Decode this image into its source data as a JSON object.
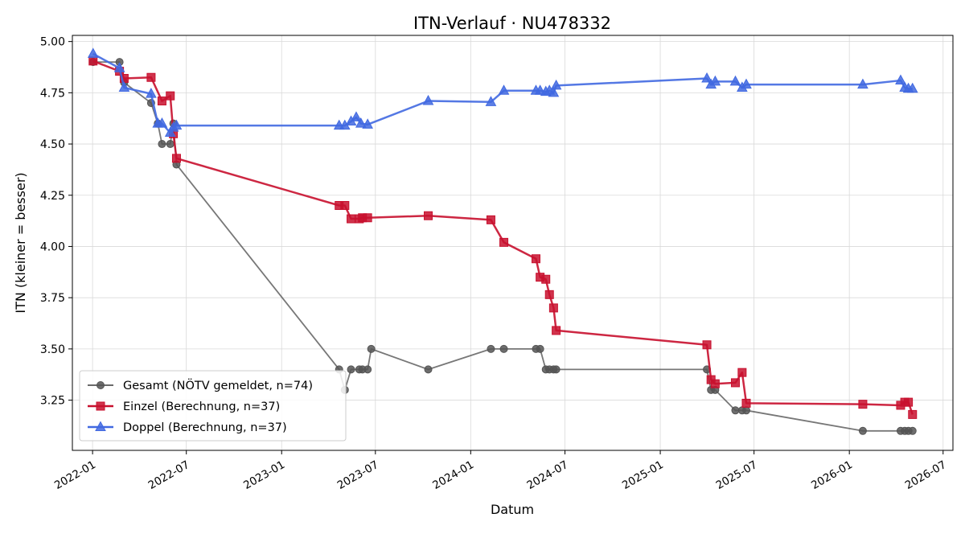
{
  "chart_data": {
    "type": "line",
    "title": "ITN-Verlauf · NU478332",
    "xlabel": "Datum",
    "ylabel": "ITN  (kleiner = besser)",
    "xlim": [
      "2021-11-23",
      "2026-07-20"
    ],
    "ylim": [
      3.005,
      5.03
    ],
    "x_ticks": [
      "2022-01",
      "2022-07",
      "2023-01",
      "2023-07",
      "2024-01",
      "2024-07",
      "2025-01",
      "2025-07",
      "2026-01",
      "2026-07"
    ],
    "y_ticks": [
      "3.25",
      "3.50",
      "3.75",
      "4.00",
      "4.25",
      "4.50",
      "4.75",
      "5.00"
    ],
    "grid": true,
    "legend_position": "lower-left",
    "series": [
      {
        "name": "Gesamt (NÖTV gemeldet, n=74)",
        "color": "#555555",
        "marker": "circle",
        "points": [
          [
            "2022-01-02",
            4.9
          ],
          [
            "2022-02-22",
            4.9
          ],
          [
            "2022-03-03",
            4.8
          ],
          [
            "2022-04-24",
            4.7
          ],
          [
            "2022-05-07",
            4.6
          ],
          [
            "2022-05-15",
            4.5
          ],
          [
            "2022-05-31",
            4.5
          ],
          [
            "2022-06-06",
            4.6
          ],
          [
            "2022-06-12",
            4.4
          ],
          [
            "2023-04-22",
            3.4
          ],
          [
            "2023-05-03",
            3.3
          ],
          [
            "2023-05-15",
            3.4
          ],
          [
            "2023-05-31",
            3.4
          ],
          [
            "2023-06-06",
            3.4
          ],
          [
            "2023-06-16",
            3.4
          ],
          [
            "2023-06-23",
            3.5
          ],
          [
            "2023-10-11",
            3.4
          ],
          [
            "2024-02-09",
            3.5
          ],
          [
            "2024-03-05",
            3.5
          ],
          [
            "2024-05-06",
            3.5
          ],
          [
            "2024-05-14",
            3.5
          ],
          [
            "2024-05-25",
            3.4
          ],
          [
            "2024-06-01",
            3.4
          ],
          [
            "2024-06-09",
            3.4
          ],
          [
            "2024-06-14",
            3.4
          ],
          [
            "2025-04-01",
            3.4
          ],
          [
            "2025-04-09",
            3.3
          ],
          [
            "2025-04-17",
            3.3
          ],
          [
            "2025-05-26",
            3.2
          ],
          [
            "2025-06-08",
            3.2
          ],
          [
            "2025-06-16",
            3.2
          ],
          [
            "2026-01-27",
            3.1
          ],
          [
            "2026-04-10",
            3.1
          ],
          [
            "2026-04-18",
            3.1
          ],
          [
            "2026-04-25",
            3.1
          ],
          [
            "2026-05-03",
            3.1
          ]
        ]
      },
      {
        "name": "Einzel (Berechnung, n=37)",
        "color": "#c8102e",
        "marker": "square",
        "points": [
          [
            "2022-01-02",
            4.905
          ],
          [
            "2022-02-22",
            4.855
          ],
          [
            "2022-03-03",
            4.82
          ],
          [
            "2022-04-24",
            4.825
          ],
          [
            "2022-05-15",
            4.71
          ],
          [
            "2022-05-31",
            4.735
          ],
          [
            "2022-06-06",
            4.55
          ],
          [
            "2022-06-12",
            4.43
          ],
          [
            "2023-04-22",
            4.2
          ],
          [
            "2023-05-03",
            4.2
          ],
          [
            "2023-05-15",
            4.135
          ],
          [
            "2023-05-31",
            4.135
          ],
          [
            "2023-06-06",
            4.14
          ],
          [
            "2023-06-16",
            4.14
          ],
          [
            "2023-10-11",
            4.15
          ],
          [
            "2024-02-09",
            4.13
          ],
          [
            "2024-03-05",
            4.02
          ],
          [
            "2024-05-06",
            3.94
          ],
          [
            "2024-05-14",
            3.85
          ],
          [
            "2024-05-25",
            3.84
          ],
          [
            "2024-06-01",
            3.765
          ],
          [
            "2024-06-09",
            3.7
          ],
          [
            "2024-06-14",
            3.59
          ],
          [
            "2025-04-01",
            3.52
          ],
          [
            "2025-04-09",
            3.35
          ],
          [
            "2025-04-17",
            3.33
          ],
          [
            "2025-05-26",
            3.335
          ],
          [
            "2025-06-08",
            3.385
          ],
          [
            "2025-06-16",
            3.235
          ],
          [
            "2026-01-27",
            3.23
          ],
          [
            "2026-04-10",
            3.225
          ],
          [
            "2026-04-18",
            3.24
          ],
          [
            "2026-04-25",
            3.24
          ],
          [
            "2026-05-03",
            3.18
          ]
        ]
      },
      {
        "name": "Doppel (Berechnung, n=37)",
        "color": "#4169e1",
        "marker": "triangle",
        "points": [
          [
            "2022-01-02",
            4.94
          ],
          [
            "2022-02-22",
            4.87
          ],
          [
            "2022-03-03",
            4.775
          ],
          [
            "2022-04-24",
            4.745
          ],
          [
            "2022-05-07",
            4.6
          ],
          [
            "2022-05-15",
            4.6
          ],
          [
            "2022-05-31",
            4.555
          ],
          [
            "2022-06-06",
            4.58
          ],
          [
            "2022-06-12",
            4.59
          ],
          [
            "2023-04-22",
            4.59
          ],
          [
            "2023-05-03",
            4.59
          ],
          [
            "2023-05-15",
            4.61
          ],
          [
            "2023-05-25",
            4.63
          ],
          [
            "2023-06-03",
            4.6
          ],
          [
            "2023-06-16",
            4.595
          ],
          [
            "2023-10-11",
            4.71
          ],
          [
            "2024-02-09",
            4.705
          ],
          [
            "2024-03-05",
            4.76
          ],
          [
            "2024-05-06",
            4.76
          ],
          [
            "2024-05-14",
            4.76
          ],
          [
            "2024-05-25",
            4.755
          ],
          [
            "2024-06-01",
            4.76
          ],
          [
            "2024-06-09",
            4.75
          ],
          [
            "2024-06-14",
            4.785
          ],
          [
            "2025-04-01",
            4.82
          ],
          [
            "2025-04-09",
            4.79
          ],
          [
            "2025-04-17",
            4.805
          ],
          [
            "2025-05-26",
            4.805
          ],
          [
            "2025-06-08",
            4.775
          ],
          [
            "2025-06-16",
            4.79
          ],
          [
            "2026-01-27",
            4.79
          ],
          [
            "2026-04-10",
            4.81
          ],
          [
            "2026-04-18",
            4.775
          ],
          [
            "2026-04-25",
            4.77
          ],
          [
            "2026-05-03",
            4.77
          ]
        ]
      }
    ]
  }
}
